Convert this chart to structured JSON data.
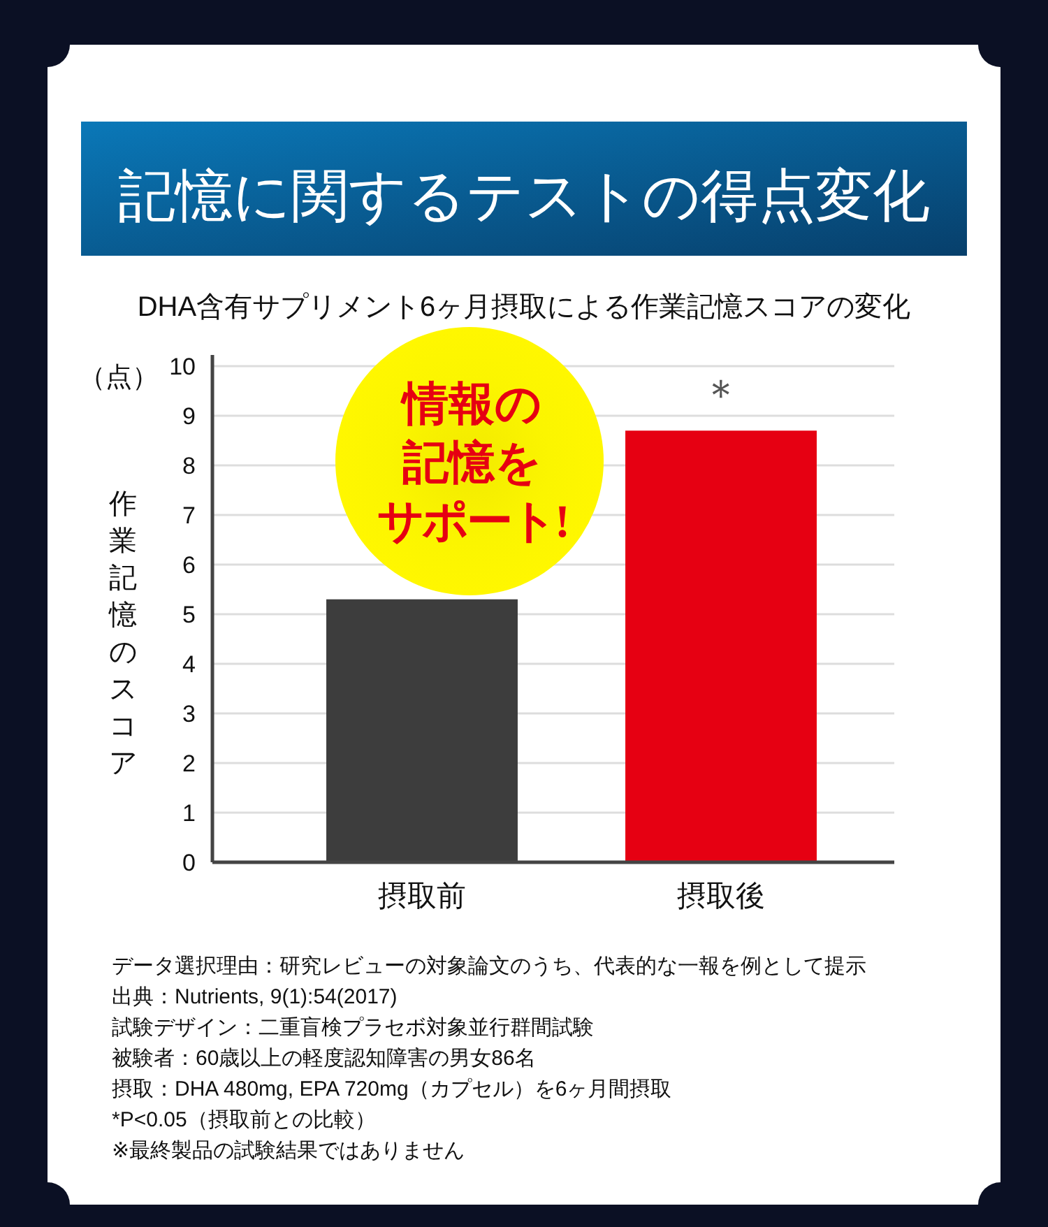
{
  "chart_data": {
    "type": "bar",
    "title": "記憶に関するテストの得点変化",
    "subtitle": "DHA含有サプリメント6ヶ月摂取による作業記憶スコアの変化",
    "ylabel": "作業記憶のスコア",
    "categories": [
      "摂取前",
      "摂取後"
    ],
    "values": [
      5.3,
      8.7
    ],
    "colors": [
      "#3d3d3d",
      "#e60012"
    ],
    "ylim": [
      0,
      10
    ],
    "yticks": [
      0,
      1,
      2,
      3,
      4,
      5,
      6,
      7,
      8,
      9,
      10
    ],
    "grid": "y",
    "annotations": [
      "情報の記憶をサポート!",
      "（点）",
      "＊",
      "データ選択理由：研究レビューの対象論文のうち、代表的な一報を例として提示",
      "出典：Nutrients, 9(1):54(2017)",
      "試験デザイン：二重盲検プラセボ対象並行群間試験",
      "被験者：60歳以上の軽度認知障害の男女86名",
      "摂取：DHA 480mg, EPA 720mg（カプセル）を6ヶ月間摂取",
      "*P<0.05（摂取前との比較）",
      "※最終製品の試験結果ではありません"
    ]
  }
}
